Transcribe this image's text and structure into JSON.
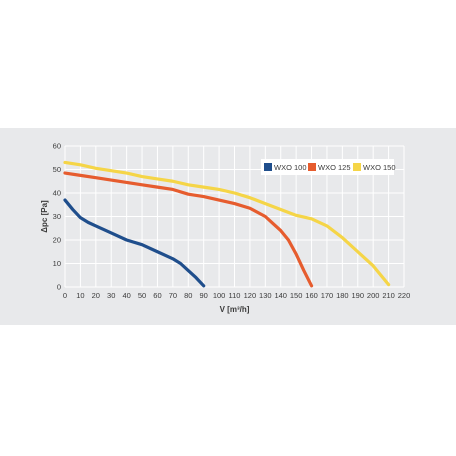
{
  "chart_data": {
    "type": "line",
    "xlabel": "V [m³/h]",
    "ylabel": "Δpc [Pa]",
    "xlim": [
      0,
      220
    ],
    "ylim": [
      0,
      60
    ],
    "xticks": [
      0,
      10,
      20,
      30,
      40,
      50,
      60,
      70,
      80,
      90,
      100,
      110,
      120,
      130,
      140,
      150,
      160,
      170,
      180,
      190,
      200,
      210,
      220
    ],
    "yticks": [
      0,
      10,
      20,
      30,
      40,
      50,
      60
    ],
    "grid": true,
    "legend_position": "top-right",
    "background_color": "#e8e9eb",
    "grid_color": "#ffffff",
    "series": [
      {
        "name": "WXO 100",
        "color": "#1f4e8c",
        "points": [
          [
            0,
            37
          ],
          [
            5,
            33
          ],
          [
            10,
            29.5
          ],
          [
            15,
            27.5
          ],
          [
            20,
            26
          ],
          [
            30,
            23
          ],
          [
            40,
            20
          ],
          [
            50,
            18
          ],
          [
            60,
            15
          ],
          [
            70,
            12
          ],
          [
            75,
            10
          ],
          [
            80,
            7
          ],
          [
            85,
            4
          ],
          [
            90,
            0.5
          ]
        ]
      },
      {
        "name": "WXO 125",
        "color": "#e65c2e",
        "points": [
          [
            0,
            48.5
          ],
          [
            10,
            47.5
          ],
          [
            20,
            46.5
          ],
          [
            30,
            45.5
          ],
          [
            40,
            44.5
          ],
          [
            50,
            43.5
          ],
          [
            60,
            42.5
          ],
          [
            70,
            41.5
          ],
          [
            80,
            39.5
          ],
          [
            90,
            38.5
          ],
          [
            100,
            37
          ],
          [
            110,
            35.5
          ],
          [
            120,
            33.5
          ],
          [
            130,
            30
          ],
          [
            135,
            27
          ],
          [
            140,
            24
          ],
          [
            145,
            20
          ],
          [
            150,
            14
          ],
          [
            155,
            7
          ],
          [
            160,
            0.5
          ]
        ]
      },
      {
        "name": "WXO 150",
        "color": "#f5d547",
        "points": [
          [
            0,
            53
          ],
          [
            10,
            52
          ],
          [
            20,
            50.5
          ],
          [
            30,
            49.5
          ],
          [
            40,
            48.5
          ],
          [
            50,
            47
          ],
          [
            60,
            46
          ],
          [
            70,
            45
          ],
          [
            80,
            43.5
          ],
          [
            90,
            42.5
          ],
          [
            100,
            41.5
          ],
          [
            110,
            40
          ],
          [
            120,
            38
          ],
          [
            130,
            35.5
          ],
          [
            140,
            33
          ],
          [
            150,
            30.5
          ],
          [
            160,
            29
          ],
          [
            170,
            26
          ],
          [
            180,
            21
          ],
          [
            190,
            15
          ],
          [
            200,
            9
          ],
          [
            210,
            1
          ]
        ]
      }
    ]
  }
}
